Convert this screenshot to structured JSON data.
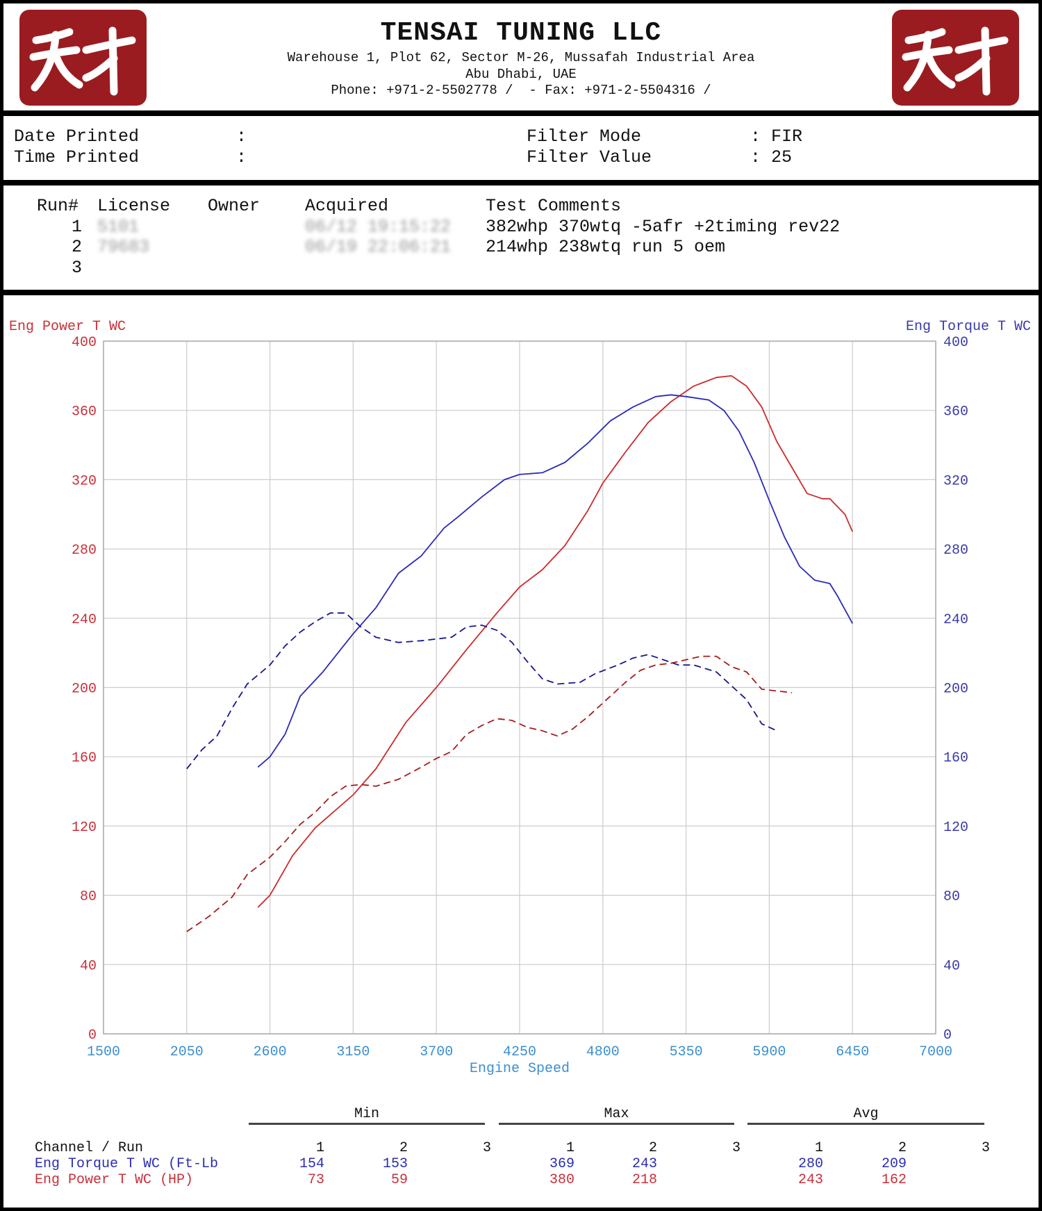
{
  "header": {
    "company": "TENSAI TUNING LLC",
    "address_line1": "Warehouse 1, Plot 62, Sector M-26, Mussafah Industrial Area",
    "address_line2": "Abu Dhabi, UAE",
    "contact_line": "Phone: +971-2-5502778 /  - Fax: +971-2-5504316 /",
    "logo_text": "天才",
    "logo_color": "#9b1c20"
  },
  "info": {
    "date_label": "Date Printed",
    "time_label": "Time Printed",
    "colon": ":",
    "filter_mode_label": "Filter Mode",
    "filter_mode_value": "FIR",
    "filter_value_label": "Filter Value",
    "filter_value_value": "25"
  },
  "runs": {
    "headers": [
      "Run#",
      "License",
      "Owner",
      "Acquired",
      "Test Comments"
    ],
    "rows": [
      {
        "run": "1",
        "license": "5101",
        "owner": "",
        "acquired": "06/12 19:15:22",
        "comment": "382whp 370wtq -5afr +2timing rev22"
      },
      {
        "run": "2",
        "license": "79683",
        "owner": "",
        "acquired": "06/19 22:06:21",
        "comment": "214whp 238wtq run 5 oem"
      },
      {
        "run": "3",
        "license": "",
        "owner": "",
        "acquired": "",
        "comment": ""
      }
    ]
  },
  "chart_data": {
    "type": "line",
    "xlabel": "Engine Speed",
    "ylabel_left": "Eng Power T WC",
    "ylabel_right": "Eng Torque T WC",
    "xlim": [
      1500,
      7000
    ],
    "xticks": [
      1500,
      2050,
      2600,
      3150,
      3700,
      4250,
      4800,
      5350,
      5900,
      6450,
      7000
    ],
    "ylim_left": [
      0,
      400
    ],
    "ylim_right": [
      0,
      400
    ],
    "yticks": [
      0,
      40,
      80,
      120,
      160,
      200,
      240,
      280,
      320,
      360,
      400
    ],
    "grid": true,
    "colors": {
      "power": "#cc2a2a",
      "power_run2": "#a51c1c",
      "torque": "#2a2ab8",
      "torque_run2": "#161690",
      "xtick": "#3a8fd0",
      "grid": "#cccccc"
    },
    "series": [
      {
        "channel": "power",
        "run": 1,
        "style": "solid",
        "x": [
          2520,
          2600,
          2750,
          2900,
          3150,
          3300,
          3500,
          3700,
          3900,
          4100,
          4250,
          4400,
          4550,
          4700,
          4800,
          4950,
          5100,
          5250,
          5400,
          5550,
          5650,
          5750,
          5850,
          5950,
          6050,
          6150,
          6250,
          6300,
          6400,
          6450
        ],
        "y": [
          73,
          80,
          103,
          119,
          138,
          153,
          180,
          200,
          222,
          243,
          258,
          268,
          282,
          302,
          318,
          336,
          353,
          365,
          374,
          379,
          380,
          374,
          362,
          342,
          327,
          312,
          309,
          309,
          300,
          290
        ]
      },
      {
        "channel": "torque",
        "run": 1,
        "style": "solid",
        "x": [
          2520,
          2600,
          2700,
          2800,
          2950,
          3050,
          3150,
          3300,
          3450,
          3600,
          3750,
          3850,
          4000,
          4150,
          4250,
          4400,
          4550,
          4700,
          4850,
          5000,
          5150,
          5250,
          5350,
          5500,
          5600,
          5700,
          5800,
          5900,
          6000,
          6100,
          6200,
          6300,
          6350,
          6450
        ],
        "y": [
          154,
          160,
          173,
          195,
          209,
          220,
          231,
          246,
          266,
          276,
          292,
          299,
          310,
          320,
          323,
          324,
          330,
          341,
          354,
          362,
          368,
          369,
          368,
          366,
          360,
          348,
          330,
          308,
          287,
          270,
          262,
          260,
          253,
          237
        ]
      },
      {
        "channel": "power",
        "run": 2,
        "style": "dashed",
        "x": [
          2050,
          2200,
          2350,
          2450,
          2600,
          2700,
          2800,
          2900,
          3000,
          3100,
          3200,
          3300,
          3450,
          3600,
          3700,
          3800,
          3900,
          4000,
          4100,
          4200,
          4300,
          4400,
          4500,
          4600,
          4700,
          4800,
          4950,
          5050,
          5150,
          5250,
          5350,
          5450,
          5550,
          5650,
          5750,
          5850,
          5950,
          6050
        ],
        "y": [
          59,
          68,
          79,
          92,
          102,
          111,
          121,
          128,
          137,
          143,
          144,
          143,
          147,
          154,
          159,
          163,
          173,
          178,
          182,
          181,
          177,
          175,
          172,
          176,
          183,
          191,
          203,
          210,
          213,
          214,
          216,
          218,
          218,
          212,
          209,
          199,
          198,
          197
        ]
      },
      {
        "channel": "torque",
        "run": 2,
        "style": "dashed",
        "x": [
          2050,
          2150,
          2250,
          2350,
          2450,
          2600,
          2700,
          2800,
          2900,
          3000,
          3100,
          3200,
          3300,
          3450,
          3600,
          3700,
          3800,
          3900,
          4000,
          4100,
          4200,
          4300,
          4400,
          4500,
          4650,
          4750,
          4900,
          5000,
          5100,
          5200,
          5300,
          5400,
          5550,
          5650,
          5750,
          5850,
          5950
        ],
        "y": [
          153,
          164,
          172,
          188,
          202,
          213,
          224,
          232,
          238,
          243,
          243,
          235,
          229,
          226,
          227,
          228,
          229,
          235,
          236,
          233,
          226,
          215,
          205,
          202,
          203,
          208,
          213,
          217,
          219,
          216,
          213,
          213,
          209,
          201,
          193,
          179,
          175
        ]
      }
    ]
  },
  "stats": {
    "groups": [
      "Min",
      "Max",
      "Avg"
    ],
    "channel_header": "Channel / Run",
    "run_labels": [
      "1",
      "2",
      "3",
      "1",
      "2",
      "3",
      "1",
      "2",
      "3"
    ],
    "rows": [
      {
        "channel": "Eng Torque T WC (Ft-Lb",
        "color": "blue",
        "values": [
          "154",
          "153",
          "",
          "369",
          "243",
          "",
          "280",
          "209",
          ""
        ]
      },
      {
        "channel": "Eng Power T WC (HP)",
        "color": "red",
        "values": [
          "73",
          "59",
          "",
          "380",
          "218",
          "",
          "243",
          "162",
          ""
        ]
      }
    ]
  }
}
